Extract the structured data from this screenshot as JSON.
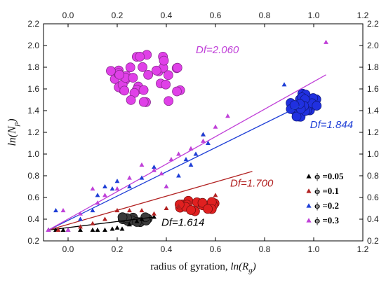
{
  "chart_data": {
    "type": "scatter",
    "xlabel": "radius of gyration, ln(R g)",
    "xlabel_parts": {
      "prefix": "radius of gyration, ",
      "fn": "ln(",
      "var": "R",
      "sub": "g",
      "suffix": ")"
    },
    "ylabel_parts": {
      "fn": "ln(",
      "var": "N",
      "sub": "p",
      "suffix": ")"
    },
    "xlim": [
      -0.1,
      1.2
    ],
    "ylim": [
      0.2,
      2.2
    ],
    "x_ticks": [
      0.0,
      0.2,
      0.4,
      0.6,
      0.8,
      1.0,
      1.2
    ],
    "x_tick_labels": [
      "0.0",
      "0.2",
      "0.4",
      "0.6",
      "0.8",
      "1.0",
      "1.2"
    ],
    "y_ticks": [
      0.2,
      0.4,
      0.6,
      0.8,
      1.0,
      1.2,
      1.4,
      1.6,
      1.8,
      2.0,
      2.2
    ],
    "y_tick_labels": [
      "0.2",
      "0.4",
      "0.6",
      "0.8",
      "1.0",
      "1.2",
      "1.4",
      "1.6",
      "1.8",
      "2.0",
      "2.2"
    ],
    "mirror_axes": true,
    "grid": false,
    "legend_position": "bottom-right",
    "series": [
      {
        "name": "ϕ =0.05",
        "color": "#000000",
        "marker": "triangle",
        "points": [
          [
            -0.08,
            0.3
          ],
          [
            -0.05,
            0.3
          ],
          [
            -0.02,
            0.3
          ],
          [
            0.0,
            0.3
          ],
          [
            0.05,
            0.3
          ],
          [
            0.1,
            0.3
          ],
          [
            0.15,
            0.3
          ],
          [
            0.2,
            0.32
          ],
          [
            0.25,
            0.35
          ],
          [
            0.3,
            0.4
          ],
          [
            0.28,
            0.38
          ],
          [
            0.35,
            0.42
          ],
          [
            0.22,
            0.31
          ],
          [
            0.12,
            0.3
          ],
          [
            0.18,
            0.31
          ]
        ]
      },
      {
        "name": "ϕ =0.1",
        "color": "#b22222",
        "marker": "triangle",
        "points": [
          [
            -0.08,
            0.3
          ],
          [
            -0.04,
            0.3
          ],
          [
            0.0,
            0.3
          ],
          [
            0.05,
            0.33
          ],
          [
            0.1,
            0.36
          ],
          [
            0.15,
            0.4
          ],
          [
            0.2,
            0.48
          ],
          [
            0.25,
            0.48
          ],
          [
            0.3,
            0.48
          ],
          [
            0.4,
            0.5
          ],
          [
            0.5,
            0.55
          ],
          [
            0.55,
            1.18
          ],
          [
            0.6,
            0.62
          ],
          [
            0.35,
            0.45
          ],
          [
            0.45,
            0.52
          ]
        ]
      },
      {
        "name": "ϕ =0.2",
        "color": "#1f3fd6",
        "marker": "triangle",
        "points": [
          [
            -0.08,
            0.3
          ],
          [
            -0.05,
            0.48
          ],
          [
            0.0,
            0.3
          ],
          [
            0.05,
            0.4
          ],
          [
            0.1,
            0.48
          ],
          [
            0.12,
            0.62
          ],
          [
            0.15,
            0.7
          ],
          [
            0.2,
            0.75
          ],
          [
            0.25,
            0.7
          ],
          [
            0.3,
            0.78
          ],
          [
            0.35,
            0.88
          ],
          [
            0.4,
            0.7
          ],
          [
            0.45,
            0.8
          ],
          [
            0.5,
            0.9
          ],
          [
            0.55,
            1.18
          ],
          [
            0.57,
            1.1
          ],
          [
            0.88,
            1.64
          ],
          [
            0.52,
            1.0
          ],
          [
            0.48,
            0.95
          ],
          [
            0.18,
            0.68
          ]
        ]
      },
      {
        "name": "ϕ =0.3",
        "color": "#c040d8",
        "marker": "triangle",
        "points": [
          [
            -0.08,
            0.3
          ],
          [
            -0.02,
            0.48
          ],
          [
            0.0,
            0.3
          ],
          [
            0.05,
            0.45
          ],
          [
            0.1,
            0.68
          ],
          [
            0.15,
            0.62
          ],
          [
            0.2,
            0.68
          ],
          [
            0.25,
            0.78
          ],
          [
            0.3,
            0.9
          ],
          [
            0.35,
            0.85
          ],
          [
            0.4,
            0.7
          ],
          [
            0.45,
            1.0
          ],
          [
            0.5,
            1.05
          ],
          [
            0.55,
            1.12
          ],
          [
            0.6,
            1.25
          ],
          [
            0.65,
            1.35
          ],
          [
            1.05,
            2.03
          ],
          [
            0.38,
            0.82
          ],
          [
            0.42,
            0.95
          ],
          [
            0.12,
            0.55
          ]
        ]
      }
    ],
    "fit_lines": [
      {
        "label": "Df=1.614",
        "color": "#000000",
        "x": [
          -0.08,
          0.35
        ],
        "y": [
          0.3,
          0.42
        ]
      },
      {
        "label": "Df=1.700",
        "color": "#b22222",
        "x": [
          -0.08,
          0.75
        ],
        "y": [
          0.3,
          0.84
        ]
      },
      {
        "label": "Df=1.844",
        "color": "#1f3fd6",
        "x": [
          -0.08,
          0.95
        ],
        "y": [
          0.3,
          1.45
        ]
      },
      {
        "label": "Df=2.060",
        "color": "#c040d8",
        "x": [
          -0.08,
          1.05
        ],
        "y": [
          0.3,
          1.73
        ]
      }
    ],
    "annotations": [
      {
        "text": "Df=2.060",
        "color": "#c040d8",
        "x": 0.52,
        "y": 1.93
      },
      {
        "text": "Df=1.844",
        "color": "#1f3fd6",
        "x": 0.985,
        "y": 1.24
      },
      {
        "text": "Df=1.700",
        "color": "#b22222",
        "x": 0.66,
        "y": 0.7
      },
      {
        "text": "Df=1.614",
        "color": "#000000",
        "x": 0.38,
        "y": 0.34
      }
    ],
    "aggregates": [
      {
        "name": "magenta-aggregate",
        "color": "#e040e8",
        "edge": "#8a2a90",
        "cx": 0.31,
        "cy": 1.68,
        "spread_x": 0.16,
        "spread_y": 0.25,
        "count": 40
      },
      {
        "name": "blue-aggregate",
        "color": "#2030e0",
        "edge": "#101a80",
        "cx": 0.96,
        "cy": 1.44,
        "spread_x": 0.06,
        "spread_y": 0.12,
        "count": 30
      },
      {
        "name": "red-aggregate",
        "color": "#e02020",
        "edge": "#7a1010",
        "cx": 0.53,
        "cy": 0.52,
        "spread_x": 0.08,
        "spread_y": 0.06,
        "count": 16
      },
      {
        "name": "black-aggregate",
        "color": "#3a3a3a",
        "edge": "#101010",
        "cx": 0.28,
        "cy": 0.41,
        "spread_x": 0.06,
        "spread_y": 0.04,
        "count": 12
      }
    ]
  }
}
